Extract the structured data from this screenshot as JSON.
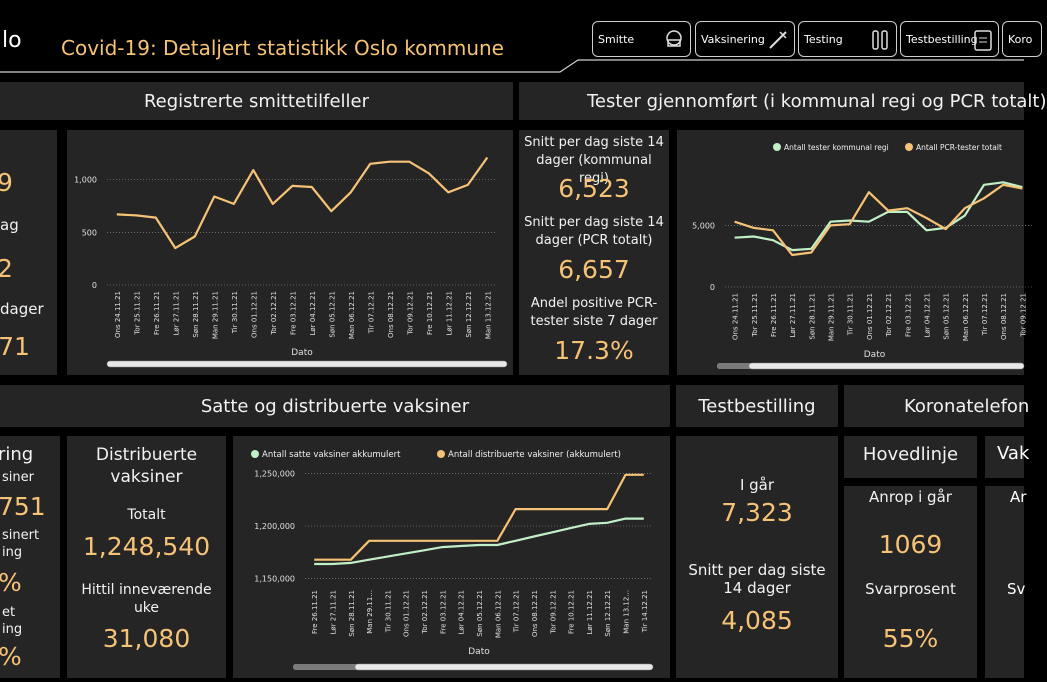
{
  "app": {
    "logo_fragment": "lo",
    "title": "Covid-19: Detaljert statistikk Oslo kommune"
  },
  "nav": [
    {
      "label": "Smitte",
      "icon": "nurse-mask-icon"
    },
    {
      "label": "Vaksinering",
      "icon": "syringe-icon"
    },
    {
      "label": "Testing",
      "icon": "test-tubes-icon"
    },
    {
      "label": "Testbestilling",
      "icon": "clipboard-icon"
    },
    {
      "label": "Koro",
      "icon": "phone-icon"
    }
  ],
  "sections": {
    "smitte": "Registrerte smittetilfeller",
    "tester": "Tester gjennomført (i kommunal regi og PCR totalt)",
    "vaksiner": "Satte og distribuerte vaksiner",
    "testbestilling": "Testbestilling",
    "koronatelefon": "Koronatelefon"
  },
  "left_kpis": {
    "v1": "9",
    "l1": "ag",
    "v2": "2",
    "l2": "dager",
    "v3": "71"
  },
  "tester_kpis": {
    "l1": "Snitt per dag siste 14 dager (kommunal regi)",
    "v1": "6,523",
    "l2": "Snitt per dag siste 14 dager (PCR totalt)",
    "v2": "6,657",
    "l3": "Andel positive PCR-tester siste 7 dager",
    "v3": "17.3%"
  },
  "vaks_left": {
    "title": "ring",
    "l1": "siner",
    "v1": "751",
    "l2": "sinert",
    "l2b": "ing",
    "v2": "%",
    "l3": "et",
    "l3b": "ing",
    "v3": "%"
  },
  "distribuerte": {
    "title": "Distribuerte vaksiner",
    "l1": "Totalt",
    "v1": "1,248,540",
    "l2": "Hittil inneværende uke",
    "v2": "31,080"
  },
  "testbestilling": {
    "l1": "I går",
    "v1": "7,323",
    "l2": "Snitt per dag siste 14 dager",
    "v2": "4,085"
  },
  "hovedlinje": {
    "title": "Hovedlinje",
    "l1": "Anrop i går",
    "v1": "1069",
    "l2": "Svarprosent",
    "v2": "55%"
  },
  "vaks_line": {
    "title": "Vak",
    "l1": "Ar",
    "l2": "Sv"
  },
  "colors": {
    "gold": "#f6c276",
    "green": "#c2f0c6",
    "panel": "#252525"
  },
  "chart_data": [
    {
      "id": "smitte",
      "type": "line",
      "categories": [
        "Ons 24.11.21",
        "Tor 25.11.21",
        "Fre 26.11.21",
        "Lør 27.11.21",
        "Søn 28.11.21",
        "Man 29.11.21",
        "Tir 30.11.21",
        "Ons 01.12.21",
        "Tor 02.12.21",
        "Fre 03.12.21",
        "Lør 04.12.21",
        "Søn 05.12.21",
        "Man 06.12.21",
        "Tir 07.12.21",
        "Ons 08.12.21",
        "Tor 09.12.21",
        "Fre 10.12.21",
        "Lør 11.12.21",
        "Søn 12.12.21",
        "Man 13.12.21"
      ],
      "series": [
        {
          "values": [
            670,
            660,
            640,
            350,
            460,
            840,
            770,
            1090,
            770,
            940,
            930,
            700,
            880,
            1150,
            1170,
            1170,
            1060,
            880,
            950,
            1210
          ]
        }
      ],
      "xlabel": "Dato",
      "yticks": [
        {
          "v": 0,
          "t": "0"
        },
        {
          "v": 500,
          "t": "500"
        },
        {
          "v": 1000,
          "t": "1,000"
        }
      ],
      "ylim": [
        0,
        1300
      ]
    },
    {
      "id": "tester",
      "type": "line",
      "categories": [
        "Ons 24.11.21",
        "Tor 25.11.21",
        "Fre 26.11.21",
        "Lør 27.11.21",
        "Søn 28.11.21",
        "Man 29.11.21",
        "Tir 30.11.21",
        "Ons 01.12.21",
        "Tor 02.12.21",
        "Fre 03.12.21",
        "Lør 04.12.21",
        "Søn 05.12.21",
        "Man 06.12.21",
        "Tir 07.12.21",
        "Ons 08.12.21",
        "Tor 09.12.21"
      ],
      "series": [
        {
          "name": "Antall tester kommunal regi",
          "values": [
            4000,
            4100,
            3800,
            3000,
            3100,
            5300,
            5400,
            5300,
            6100,
            6100,
            4600,
            4800,
            5800,
            8300,
            8500,
            8100
          ]
        },
        {
          "name": "Antall PCR-tester totalt",
          "values": [
            5300,
            4800,
            4600,
            2600,
            2800,
            5000,
            5100,
            7700,
            6200,
            6400,
            5600,
            4700,
            6400,
            7200,
            8300,
            8000
          ]
        }
      ],
      "xlabel": "Dato",
      "yticks": [
        {
          "v": 0,
          "t": "0"
        },
        {
          "v": 5000,
          "t": "5,000"
        }
      ],
      "ylim": [
        0,
        9500
      ],
      "legend": "top"
    },
    {
      "id": "vaksiner",
      "type": "line",
      "categories": [
        "Fre 26.11.21",
        "Lør 27.11.21",
        "Søn 28.11.21",
        "Man 29.11...",
        "Tir 30.11.21",
        "Ons 01.12.21",
        "Tor 02.12.21",
        "Fre 03.12.21",
        "Lør 04.12.21",
        "Søn 05.12.21",
        "Man 06.12.21",
        "Tir 07.12.21",
        "Ons 08.12.21",
        "Tor 09.12.21",
        "Fre 10.12.21",
        "Lør 11.12.21",
        "Søn 12.12.21",
        "Man 13.12...",
        "Tir 14.12.21"
      ],
      "series": [
        {
          "name": "Antall satte vaksiner akkumulert",
          "values": [
            1164000,
            1164000,
            1165000,
            1168000,
            1171000,
            1174000,
            1177000,
            1180000,
            1181000,
            1182000,
            1182000,
            1186000,
            1190000,
            1194000,
            1198000,
            1202000,
            1203000,
            1207000,
            1207000
          ]
        },
        {
          "name": "Antall distribuerte vaksiner (akkumulert)",
          "values": [
            1168000,
            1168000,
            1168000,
            1186000,
            1186000,
            1186000,
            1186000,
            1186000,
            1186000,
            1186000,
            1186000,
            1216000,
            1216000,
            1216000,
            1216000,
            1216000,
            1216000,
            1248540,
            1248540
          ]
        }
      ],
      "xlabel": "Dato",
      "yticks": [
        {
          "v": 1150000,
          "t": "1,150,000"
        },
        {
          "v": 1200000,
          "t": "1,200,000"
        },
        {
          "v": 1250000,
          "t": "1,250,000"
        }
      ],
      "ylim": [
        1145000,
        1255000
      ],
      "legend": "top"
    }
  ]
}
